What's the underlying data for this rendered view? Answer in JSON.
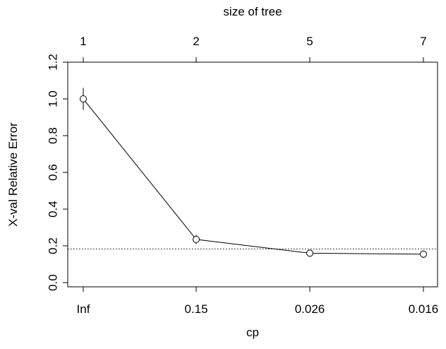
{
  "chart_data": {
    "type": "line",
    "title": "",
    "xlabel": "cp",
    "ylabel": "X-val Relative Error",
    "top_axis_label": "size of tree",
    "x_ticks": [
      "Inf",
      "0.15",
      "0.026",
      "0.016"
    ],
    "top_ticks": [
      "1",
      "2",
      "5",
      "7"
    ],
    "y_ticks": [
      "0.0",
      "0.2",
      "0.4",
      "0.6",
      "0.8",
      "1.0",
      "1.2"
    ],
    "ylim": [
      0,
      1.2
    ],
    "series": [
      {
        "values": [
          1.0,
          0.235,
          0.16,
          0.155
        ],
        "error_low": [
          0.94,
          0.21,
          0.14,
          0.135
        ],
        "error_high": [
          1.06,
          0.26,
          0.18,
          0.175
        ]
      }
    ],
    "reference_line": {
      "value": 0.183,
      "style": "dotted"
    },
    "grid": false,
    "legend": "none",
    "line_color": "#000000"
  }
}
